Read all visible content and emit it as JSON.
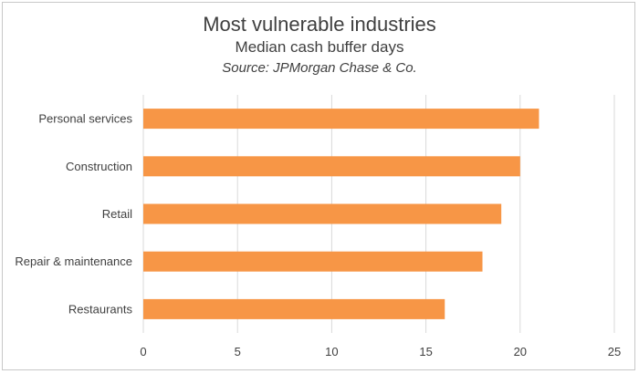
{
  "chart_data": {
    "type": "bar",
    "orientation": "horizontal",
    "title": "Most vulnerable industries",
    "subtitle": "Median cash buffer days",
    "source": "Source: JPMorgan Chase & Co.",
    "categories": [
      "Personal services",
      "Construction",
      "Retail",
      "Repair & maintenance",
      "Restaurants"
    ],
    "values": [
      21,
      20,
      19,
      18,
      16
    ],
    "xlim": [
      0,
      25
    ],
    "xticks": [
      "0",
      "5",
      "10",
      "15",
      "20",
      "25"
    ],
    "grid": "vertical",
    "legend": "none",
    "bar_color": "#F79646",
    "grid_color": "#D9D9D9"
  }
}
